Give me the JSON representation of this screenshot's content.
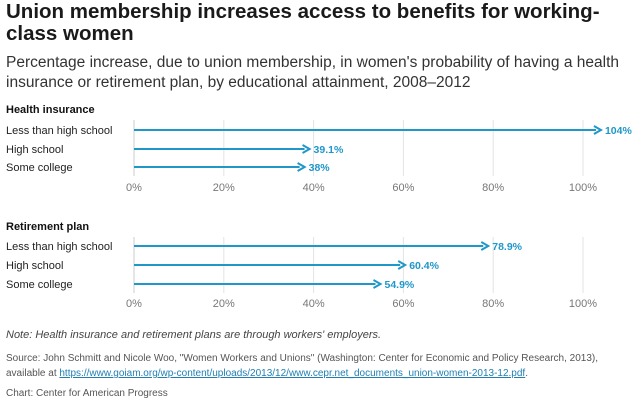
{
  "title": "Union membership increases access to benefits for working-class women",
  "subtitle": "Percentage increase, due to union membership, in women's probability of having a health insurance or retirement plan, by educational attainment, 2008–2012",
  "note": "Note: Health insurance and retirement plans are through workers' employers.",
  "source": {
    "text": "Source: John Schmitt and Nicole Woo, \"Women Workers and Unions\" (Washington: Center for Economic and Policy Research, 2013), available at ",
    "link": "https://www.goiam.org/wp-content/uploads/2013/12/www.cepr.net_documents_union-women-2013-12.pdf",
    "suffix": "."
  },
  "credit": "Chart: Center for American Progress",
  "colors": {
    "accent": "#1f97c9",
    "grid": "#e3e3e3",
    "axis": "#cccccc"
  },
  "chart_data": [
    {
      "type": "bar",
      "title": "Health insurance",
      "categories": [
        "Less than high school",
        "High school",
        "Some college"
      ],
      "values": [
        104,
        39.1,
        38
      ],
      "value_labels": [
        "104%",
        "39.1%",
        "38%"
      ],
      "xlim": [
        0,
        110
      ],
      "xticks": [
        0,
        20,
        40,
        60,
        80,
        100
      ],
      "xtick_labels": [
        "0%",
        "20%",
        "40%",
        "60%",
        "80%",
        "100%"
      ],
      "grid": true
    },
    {
      "type": "bar",
      "title": "Retirement plan",
      "categories": [
        "Less than high school",
        "High school",
        "Some college"
      ],
      "values": [
        78.9,
        60.4,
        54.9
      ],
      "value_labels": [
        "78.9%",
        "60.4%",
        "54.9%"
      ],
      "xlim": [
        0,
        110
      ],
      "xticks": [
        0,
        20,
        40,
        60,
        80,
        100
      ],
      "xtick_labels": [
        "0%",
        "20%",
        "40%",
        "60%",
        "80%",
        "100%"
      ],
      "grid": true
    }
  ]
}
